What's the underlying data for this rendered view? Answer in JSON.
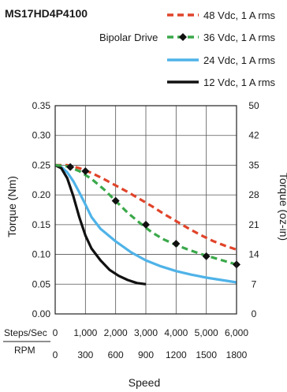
{
  "chart_data": {
    "type": "line",
    "title": "MS17HD4P4100",
    "subtitle": "Bipolar Drive",
    "xlabel": "Speed",
    "ylabel": "Torque (Nm)",
    "y2label": "Torque (oz-in)",
    "x_scale_label": "Steps/Sec",
    "x2_scale_label": "RPM",
    "xlim": [
      0,
      6000
    ],
    "ylim": [
      0,
      0.35
    ],
    "y2lim": [
      0,
      50
    ],
    "grid": true,
    "legend_position": "top-right",
    "xticks": [
      "0",
      "1,000",
      "2,000",
      "3,000",
      "4,000",
      "5,000",
      "6,000"
    ],
    "xticks_values": [
      0,
      1000,
      2000,
      3000,
      4000,
      5000,
      6000
    ],
    "x2ticks": [
      "0",
      "300",
      "600",
      "900",
      "1200",
      "1500",
      "1800"
    ],
    "yticks": [
      "0.00",
      "0.05",
      "0.10",
      "0.15",
      "0.20",
      "0.25",
      "0.30",
      "0.35"
    ],
    "yticks_values": [
      0,
      0.05,
      0.1,
      0.15,
      0.2,
      0.25,
      0.3,
      0.35
    ],
    "y2ticks": [
      "0",
      "7",
      "14",
      "21",
      "28",
      "35",
      "42",
      "50"
    ],
    "series": [
      {
        "name": "48 Vdc, 1 A rms",
        "color": "#e0442a",
        "style": "dashed",
        "marker": "none",
        "x": [
          0,
          400,
          800,
          1200,
          1600,
          2000,
          2400,
          2800,
          3200,
          3600,
          4000,
          4400,
          4800,
          5200,
          5600,
          6000
        ],
        "y": [
          0.25,
          0.25,
          0.245,
          0.237,
          0.227,
          0.216,
          0.205,
          0.193,
          0.181,
          0.168,
          0.156,
          0.144,
          0.133,
          0.123,
          0.115,
          0.108
        ]
      },
      {
        "name": "36 Vdc, 1 A rms",
        "color": "#3aa84a",
        "style": "dashed",
        "marker": "diamond",
        "x": [
          0,
          400,
          800,
          1200,
          1600,
          2000,
          2400,
          2800,
          3200,
          3600,
          4000,
          4400,
          4800,
          5200,
          5600,
          6000
        ],
        "y": [
          0.25,
          0.248,
          0.24,
          0.227,
          0.21,
          0.19,
          0.17,
          0.153,
          0.137,
          0.125,
          0.116,
          0.108,
          0.101,
          0.095,
          0.089,
          0.083
        ],
        "markers_x": [
          500,
          1000,
          2000,
          3000,
          4000,
          5000,
          6000
        ],
        "markers_y": [
          0.247,
          0.24,
          0.19,
          0.15,
          0.118,
          0.097,
          0.083
        ]
      },
      {
        "name": "24 Vdc, 1 A rms",
        "color": "#4fb3e8",
        "style": "solid",
        "marker": "none",
        "x": [
          0,
          200,
          400,
          600,
          800,
          1000,
          1200,
          1500,
          2000,
          2500,
          3000,
          3500,
          4000,
          4500,
          5000,
          5500,
          6000
        ],
        "y": [
          0.25,
          0.247,
          0.238,
          0.223,
          0.204,
          0.184,
          0.163,
          0.143,
          0.122,
          0.104,
          0.09,
          0.08,
          0.072,
          0.066,
          0.061,
          0.057,
          0.053
        ]
      },
      {
        "name": "12 Vdc, 1 A rms",
        "color": "#111111",
        "style": "solid",
        "marker": "none",
        "x": [
          0,
          200,
          400,
          600,
          800,
          1000,
          1200,
          1500,
          1800,
          2100,
          2400,
          2700,
          3000
        ],
        "y": [
          0.25,
          0.245,
          0.228,
          0.198,
          0.162,
          0.132,
          0.11,
          0.09,
          0.074,
          0.064,
          0.057,
          0.052,
          0.05
        ]
      }
    ]
  }
}
